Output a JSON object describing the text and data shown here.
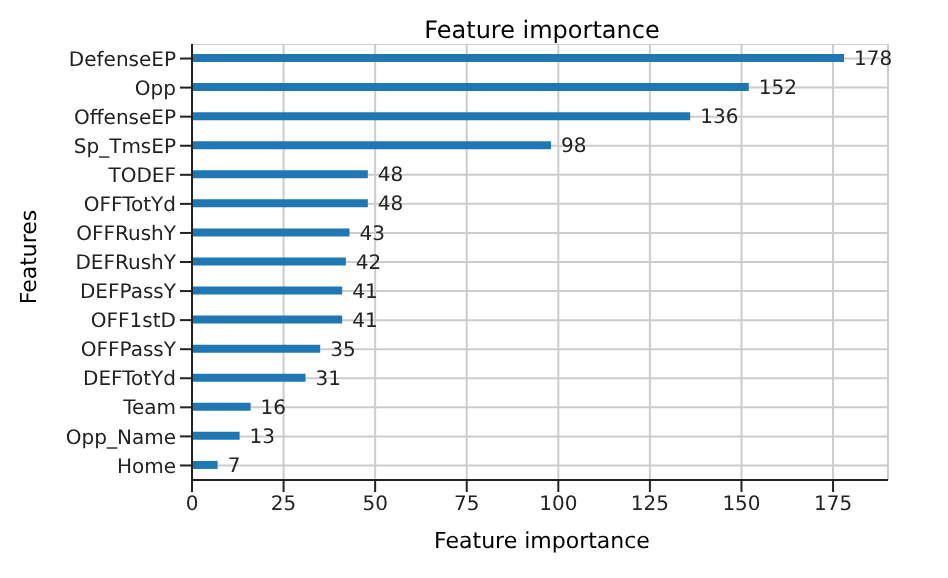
{
  "chart_data": {
    "type": "bar",
    "orientation": "horizontal",
    "title": "Feature importance",
    "xlabel": "Feature importance",
    "ylabel": "Features",
    "categories": [
      "DefenseEP",
      "Opp",
      "OffenseEP",
      "Sp_TmsEP",
      "TODEF",
      "OFFTotYd",
      "OFFRushY",
      "DEFRushY",
      "DEFPassY",
      "OFF1stD",
      "OFFPassY",
      "DEFTotYd",
      "Team",
      "Opp_Name",
      "Home"
    ],
    "values": [
      178,
      152,
      136,
      98,
      48,
      48,
      43,
      42,
      41,
      41,
      35,
      31,
      16,
      13,
      7
    ],
    "color": "#1f77b4",
    "xlim": [
      0,
      190
    ],
    "xticks": [
      0,
      25,
      50,
      75,
      100,
      125,
      150,
      175
    ],
    "grid": true,
    "data_labels": true
  }
}
